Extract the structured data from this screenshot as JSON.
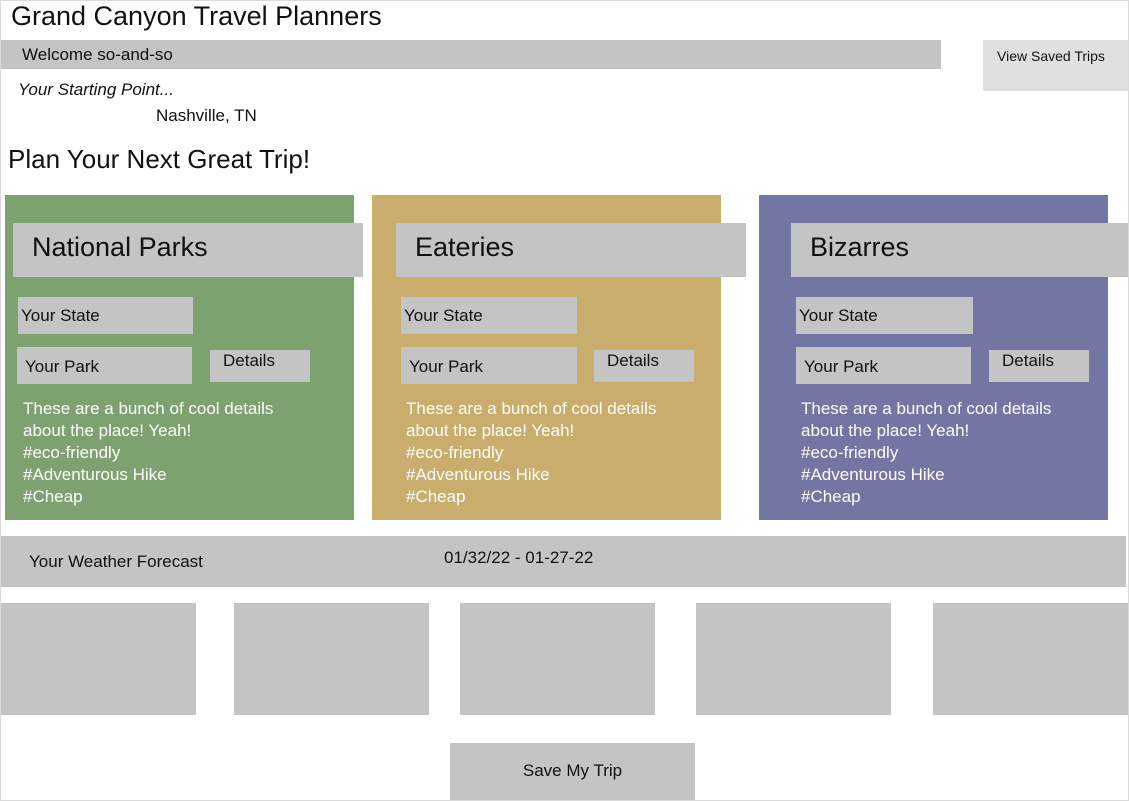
{
  "app": {
    "title": "Grand Canyon Travel Planners"
  },
  "header": {
    "welcome_text": "Welcome so-and-so",
    "saved_trips_label": "View Saved Trips"
  },
  "start": {
    "label": "Your Starting Point...",
    "value": "Nashville, TN"
  },
  "plan": {
    "heading": "Plan Your Next Great Trip!"
  },
  "cards": [
    {
      "title": "National Parks",
      "state_placeholder": "Your State",
      "park_placeholder": "Your Park",
      "details_label": "Details",
      "description": [
        "These are a bunch of cool details",
        "about the place! Yeah!"
      ],
      "tags": [
        "#eco-friendly",
        "#Adventurous Hike",
        "#Cheap"
      ],
      "color": "#7da270"
    },
    {
      "title": "Eateries",
      "state_placeholder": "Your State",
      "park_placeholder": "Your Park",
      "details_label": "Details",
      "description": [
        "These are a bunch of cool details",
        "about the place! Yeah!"
      ],
      "tags": [
        "#eco-friendly",
        "#Adventurous Hike",
        "#Cheap"
      ],
      "color": "#c8ad6c"
    },
    {
      "title": "Bizarres",
      "state_placeholder": "Your State",
      "park_placeholder": "Your Park",
      "details_label": "Details",
      "description": [
        "These are a bunch of cool details",
        "about the place! Yeah!"
      ],
      "tags": [
        "#eco-friendly",
        "#Adventurous Hike",
        "#Cheap"
      ],
      "color": "#7375a3"
    }
  ],
  "weather": {
    "label": "Your Weather Forecast",
    "dates": "01/32/22 - 01-27-22"
  },
  "footer": {
    "save_label": "Save My Trip"
  },
  "colors": {
    "placeholder_gray": "#c4c4c4",
    "saved_button_gray": "#e0e0e0"
  }
}
